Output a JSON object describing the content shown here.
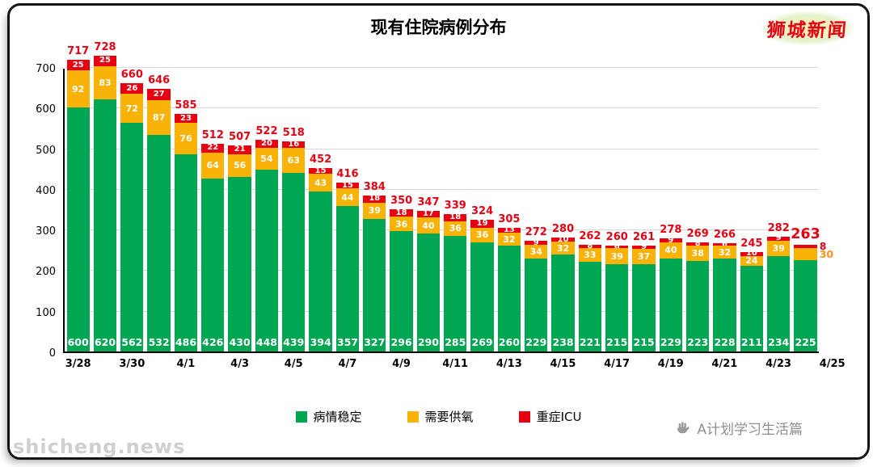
{
  "branding": {
    "top_right": "狮城新闻",
    "watermark": "shicheng.news",
    "footer": "A计划学习生活篇"
  },
  "chart_data": {
    "type": "stacked_bar",
    "title": "现有住院病例分布",
    "xlabel": "",
    "ylabel": "",
    "ylim": [
      0,
      700
    ],
    "yticks": [
      0,
      100,
      200,
      300,
      400,
      500,
      600,
      700
    ],
    "grid": true,
    "legend_position": "bottom",
    "x_tick_labels": [
      "3/28",
      "3/30",
      "4/1",
      "4/3",
      "4/5",
      "4/7",
      "4/9",
      "4/11",
      "4/13",
      "4/15",
      "4/17",
      "4/19",
      "4/21",
      "4/23",
      "4/25"
    ],
    "totals": [
      717,
      728,
      660,
      646,
      585,
      512,
      507,
      522,
      518,
      452,
      416,
      384,
      350,
      347,
      339,
      324,
      305,
      272,
      280,
      262,
      260,
      261,
      278,
      269,
      266,
      245,
      282,
      263
    ],
    "series": [
      {
        "name": "病情稳定",
        "color": "#00a651",
        "values": [
          600,
          620,
          562,
          532,
          486,
          426,
          430,
          448,
          439,
          394,
          357,
          327,
          296,
          290,
          285,
          269,
          260,
          229,
          238,
          221,
          215,
          215,
          229,
          223,
          228,
          211,
          234,
          225
        ]
      },
      {
        "name": "需要供氧",
        "color": "#f9b208",
        "values": [
          92,
          83,
          72,
          87,
          76,
          64,
          56,
          54,
          63,
          43,
          44,
          39,
          36,
          40,
          36,
          36,
          32,
          34,
          32,
          33,
          39,
          37,
          40,
          38,
          32,
          24,
          39,
          30
        ]
      },
      {
        "name": "重症ICU",
        "color": "#e60012",
        "values": [
          25,
          25,
          26,
          27,
          23,
          22,
          21,
          20,
          16,
          15,
          15,
          18,
          18,
          17,
          18,
          19,
          13,
          9,
          10,
          8,
          6,
          9,
          9,
          8,
          6,
          10,
          9,
          8
        ]
      }
    ]
  }
}
